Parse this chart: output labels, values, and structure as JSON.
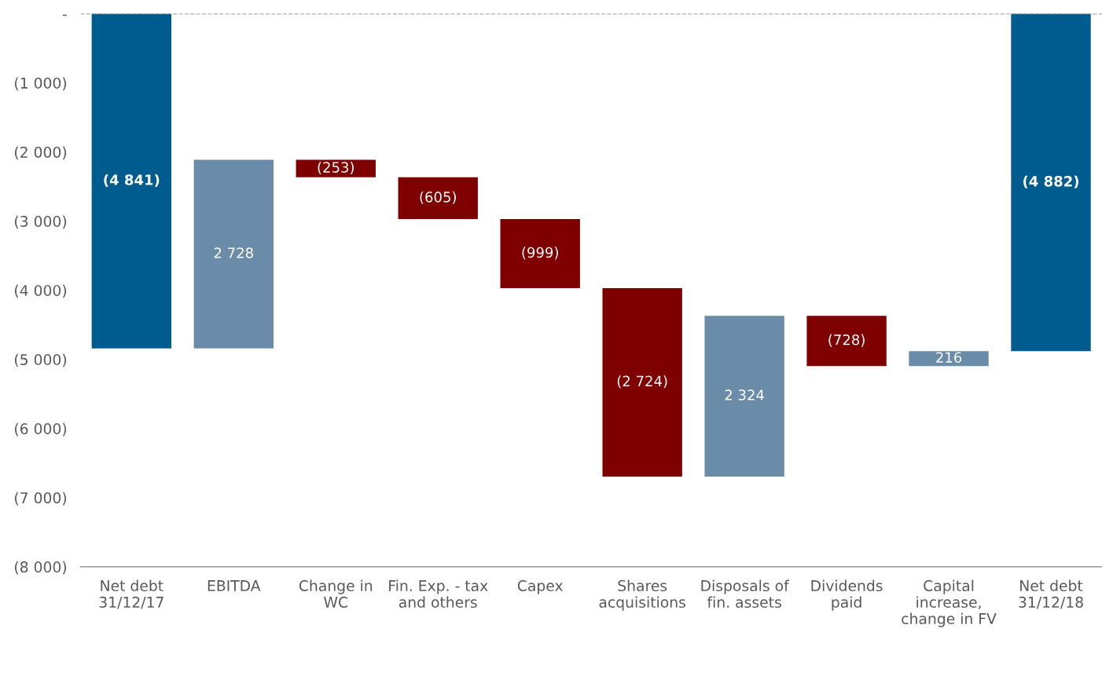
{
  "chart_data": {
    "type": "bar",
    "categories": [
      "Net debt\n31/12/17",
      "EBITDA",
      "Change in\nWC",
      "Fin. Exp. - tax\nand others",
      "Capex",
      "Shares\nacquisitions",
      "Disposals of\nfin. assets",
      "Dividends\npaid",
      "Capital\nincrease,\nchange in FV",
      "Net debt\n31/12/18"
    ],
    "values": [
      -4841,
      2728,
      -253,
      -605,
      -999,
      -2724,
      2324,
      -728,
      216,
      -4882
    ],
    "base": [
      0,
      -4841,
      -2113,
      -2366,
      -2971,
      -3970,
      -6694,
      -4370,
      -5098,
      0
    ],
    "colors": [
      "#005b8f",
      "#6a8ca8",
      "#7f0000",
      "#7f0000",
      "#7f0000",
      "#7f0000",
      "#6a8ca8",
      "#7f0000",
      "#6a8ca8",
      "#005b8f"
    ],
    "value_labels": [
      "(4 841)",
      "2 728",
      "(253)",
      "(605)",
      "(999)",
      "(2 724)",
      "2 324",
      "(728)",
      "216",
      "(4 882)"
    ],
    "ylim": [
      -8000,
      0
    ],
    "yticks": [
      {
        "value": 0,
        "label": "-"
      },
      {
        "value": -1000,
        "label": "(1 000)"
      },
      {
        "value": -2000,
        "label": "(2 000)"
      },
      {
        "value": -3000,
        "label": "(3 000)"
      },
      {
        "value": -4000,
        "label": "(4 000)"
      },
      {
        "value": -5000,
        "label": "(5 000)"
      },
      {
        "value": -6000,
        "label": "(6 000)"
      },
      {
        "value": -7000,
        "label": "(7 000)"
      },
      {
        "value": -8000,
        "label": "(8 000)"
      }
    ],
    "ref_lines": [
      {
        "axis": "y",
        "value": 0,
        "label": null,
        "color": "#7f7f7f",
        "line_style": "dashed"
      }
    ],
    "grid": false,
    "legend": false
  }
}
